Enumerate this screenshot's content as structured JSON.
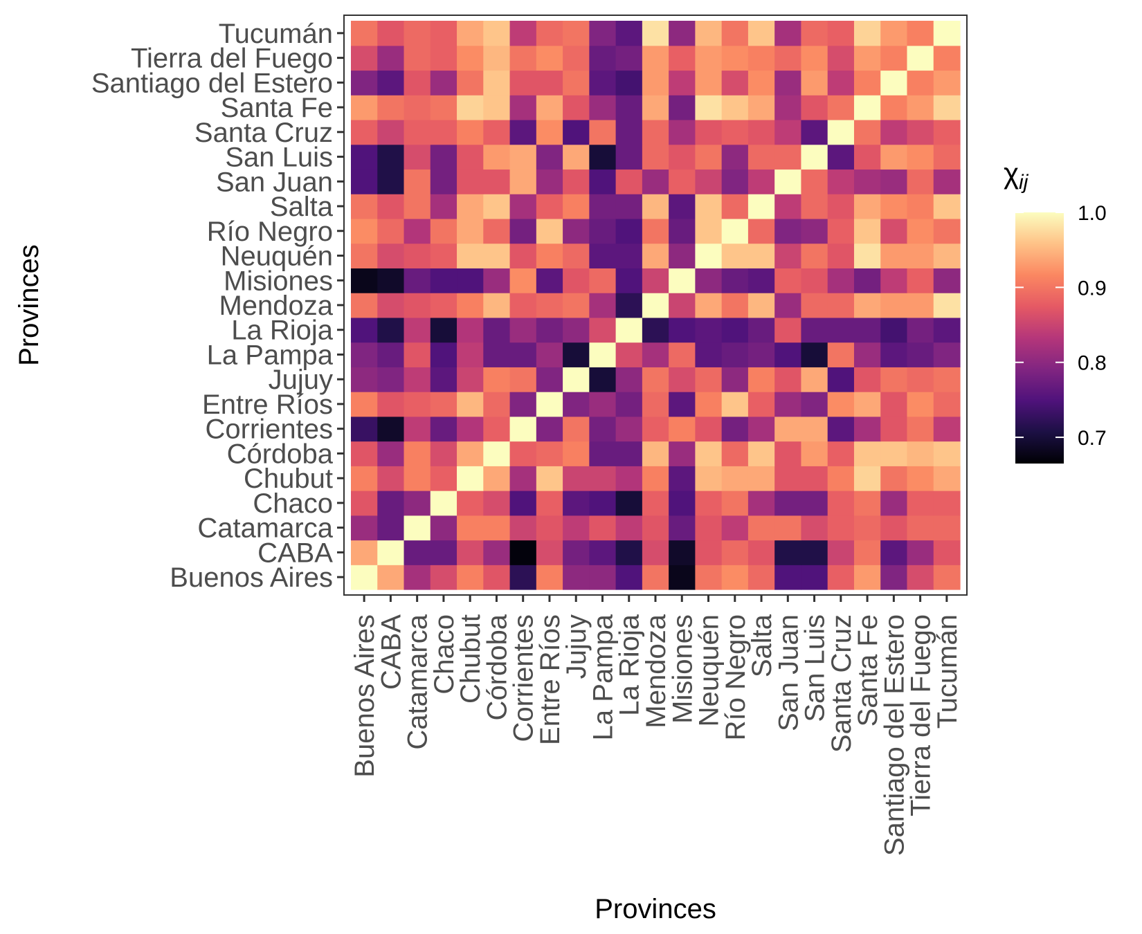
{
  "chart_data": {
    "type": "heatmap",
    "xlabel": "Provinces",
    "ylabel": "Provinces",
    "categories": [
      "Buenos Aires",
      "CABA",
      "Catamarca",
      "Chaco",
      "Chubut",
      "Córdoba",
      "Corrientes",
      "Entre Ríos",
      "Jujuy",
      "La Pampa",
      "La Rioja",
      "Mendoza",
      "Misiones",
      "Neuquén",
      "Río Negro",
      "Salta",
      "San Juan",
      "San Luis",
      "Santa Cruz",
      "Santa Fe",
      "Santiago del Estero",
      "Tierra del Fuego",
      "Tucumán"
    ],
    "legend": {
      "title_main": "χ",
      "title_sub": "ij",
      "ticks": [
        0.7,
        0.8,
        0.9,
        1.0
      ],
      "tick_labels": [
        "0.7",
        "0.8",
        "0.9",
        "1.0"
      ],
      "range": [
        0.665,
        1.0
      ],
      "placement": "right"
    },
    "colors": {
      "scale": [
        "#000004",
        "#1c1044",
        "#4f127b",
        "#812581",
        "#b5367a",
        "#e55964",
        "#fb8761",
        "#fec287",
        "#fcfdbf"
      ],
      "panel_border": "#333333",
      "tick_text": "#4d4d4d"
    },
    "values": [
      [
        1.0,
        0.94,
        0.82,
        0.86,
        0.91,
        0.87,
        0.72,
        0.91,
        0.8,
        0.8,
        0.75,
        0.9,
        0.68,
        0.9,
        0.92,
        0.89,
        0.75,
        0.75,
        0.88,
        0.93,
        0.79,
        0.86,
        0.9
      ],
      [
        0.94,
        1.0,
        0.77,
        0.77,
        0.86,
        0.81,
        0.67,
        0.86,
        0.78,
        0.76,
        0.71,
        0.86,
        0.69,
        0.87,
        0.89,
        0.87,
        0.71,
        0.71,
        0.85,
        0.9,
        0.76,
        0.81,
        0.87
      ],
      [
        0.81,
        0.77,
        1.0,
        0.8,
        0.91,
        0.91,
        0.85,
        0.87,
        0.84,
        0.87,
        0.84,
        0.87,
        0.77,
        0.87,
        0.84,
        0.9,
        0.9,
        0.86,
        0.88,
        0.89,
        0.87,
        0.89,
        0.89
      ],
      [
        0.87,
        0.77,
        0.8,
        1.0,
        0.88,
        0.86,
        0.75,
        0.88,
        0.76,
        0.75,
        0.7,
        0.88,
        0.75,
        0.88,
        0.9,
        0.82,
        0.78,
        0.78,
        0.88,
        0.9,
        0.81,
        0.88,
        0.88
      ],
      [
        0.91,
        0.86,
        0.91,
        0.88,
        1.0,
        0.94,
        0.82,
        0.96,
        0.85,
        0.85,
        0.83,
        0.91,
        0.76,
        0.95,
        0.94,
        0.94,
        0.87,
        0.87,
        0.91,
        0.97,
        0.9,
        0.92,
        0.94
      ],
      [
        0.87,
        0.81,
        0.91,
        0.86,
        0.94,
        1.0,
        0.88,
        0.89,
        0.91,
        0.77,
        0.77,
        0.95,
        0.81,
        0.96,
        0.89,
        0.96,
        0.87,
        0.93,
        0.88,
        0.96,
        0.96,
        0.95,
        0.96
      ],
      [
        0.73,
        0.69,
        0.84,
        0.77,
        0.83,
        0.88,
        1.0,
        0.79,
        0.9,
        0.78,
        0.81,
        0.88,
        0.91,
        0.87,
        0.78,
        0.82,
        0.94,
        0.94,
        0.76,
        0.82,
        0.87,
        0.9,
        0.84
      ],
      [
        0.91,
        0.87,
        0.88,
        0.89,
        0.95,
        0.89,
        0.79,
        1.0,
        0.79,
        0.81,
        0.78,
        0.89,
        0.76,
        0.91,
        0.96,
        0.88,
        0.81,
        0.79,
        0.92,
        0.94,
        0.87,
        0.92,
        0.89
      ],
      [
        0.8,
        0.79,
        0.84,
        0.76,
        0.85,
        0.91,
        0.9,
        0.79,
        1.0,
        0.7,
        0.8,
        0.9,
        0.86,
        0.89,
        0.8,
        0.91,
        0.87,
        0.94,
        0.75,
        0.87,
        0.9,
        0.89,
        0.9
      ],
      [
        0.79,
        0.77,
        0.87,
        0.75,
        0.84,
        0.77,
        0.77,
        0.81,
        0.7,
        1.0,
        0.86,
        0.82,
        0.89,
        0.76,
        0.77,
        0.78,
        0.75,
        0.7,
        0.9,
        0.81,
        0.76,
        0.77,
        0.79
      ],
      [
        0.75,
        0.71,
        0.84,
        0.7,
        0.83,
        0.77,
        0.81,
        0.78,
        0.8,
        0.86,
        1.0,
        0.72,
        0.75,
        0.76,
        0.75,
        0.77,
        0.87,
        0.77,
        0.77,
        0.77,
        0.74,
        0.78,
        0.76
      ],
      [
        0.9,
        0.86,
        0.87,
        0.88,
        0.91,
        0.95,
        0.88,
        0.89,
        0.9,
        0.82,
        0.72,
        1.0,
        0.85,
        0.94,
        0.9,
        0.95,
        0.81,
        0.89,
        0.89,
        0.94,
        0.93,
        0.93,
        0.98
      ],
      [
        0.68,
        0.69,
        0.77,
        0.75,
        0.75,
        0.81,
        0.92,
        0.76,
        0.87,
        0.89,
        0.75,
        0.85,
        1.0,
        0.8,
        0.77,
        0.76,
        0.88,
        0.87,
        0.82,
        0.78,
        0.84,
        0.88,
        0.8
      ],
      [
        0.9,
        0.86,
        0.87,
        0.88,
        0.96,
        0.96,
        0.87,
        0.91,
        0.89,
        0.76,
        0.76,
        0.94,
        0.8,
        1.0,
        0.96,
        0.96,
        0.85,
        0.9,
        0.87,
        0.98,
        0.93,
        0.93,
        0.95
      ],
      [
        0.92,
        0.89,
        0.83,
        0.9,
        0.94,
        0.89,
        0.78,
        0.96,
        0.8,
        0.77,
        0.75,
        0.9,
        0.77,
        0.96,
        1.0,
        0.89,
        0.79,
        0.8,
        0.88,
        0.96,
        0.86,
        0.92,
        0.9
      ],
      [
        0.9,
        0.87,
        0.9,
        0.82,
        0.94,
        0.96,
        0.82,
        0.88,
        0.91,
        0.78,
        0.78,
        0.95,
        0.76,
        0.96,
        0.89,
        1.0,
        0.84,
        0.89,
        0.87,
        0.94,
        0.92,
        0.91,
        0.96
      ],
      [
        0.75,
        0.71,
        0.9,
        0.78,
        0.87,
        0.87,
        0.94,
        0.81,
        0.87,
        0.75,
        0.87,
        0.81,
        0.88,
        0.85,
        0.79,
        0.84,
        1.0,
        0.89,
        0.84,
        0.82,
        0.81,
        0.89,
        0.82
      ],
      [
        0.75,
        0.71,
        0.86,
        0.78,
        0.87,
        0.93,
        0.94,
        0.79,
        0.94,
        0.7,
        0.77,
        0.89,
        0.87,
        0.9,
        0.8,
        0.89,
        0.89,
        1.0,
        0.76,
        0.87,
        0.93,
        0.92,
        0.89
      ],
      [
        0.88,
        0.85,
        0.88,
        0.88,
        0.91,
        0.88,
        0.76,
        0.92,
        0.75,
        0.9,
        0.77,
        0.89,
        0.82,
        0.87,
        0.88,
        0.87,
        0.84,
        0.76,
        1.0,
        0.9,
        0.84,
        0.86,
        0.88
      ],
      [
        0.93,
        0.9,
        0.89,
        0.9,
        0.97,
        0.96,
        0.82,
        0.94,
        0.87,
        0.81,
        0.77,
        0.94,
        0.78,
        0.98,
        0.96,
        0.94,
        0.82,
        0.87,
        0.9,
        1.0,
        0.91,
        0.93,
        0.97
      ],
      [
        0.79,
        0.76,
        0.87,
        0.81,
        0.9,
        0.96,
        0.87,
        0.87,
        0.9,
        0.76,
        0.74,
        0.93,
        0.84,
        0.93,
        0.86,
        0.92,
        0.81,
        0.93,
        0.84,
        0.91,
        1.0,
        0.91,
        0.93
      ],
      [
        0.86,
        0.81,
        0.89,
        0.88,
        0.92,
        0.95,
        0.9,
        0.92,
        0.89,
        0.77,
        0.78,
        0.93,
        0.88,
        0.93,
        0.92,
        0.91,
        0.89,
        0.92,
        0.86,
        0.93,
        0.91,
        1.0,
        0.91
      ],
      [
        0.9,
        0.87,
        0.89,
        0.88,
        0.94,
        0.96,
        0.84,
        0.89,
        0.9,
        0.79,
        0.76,
        0.98,
        0.8,
        0.95,
        0.9,
        0.96,
        0.82,
        0.89,
        0.88,
        0.97,
        0.93,
        0.91,
        1.0
      ]
    ]
  }
}
